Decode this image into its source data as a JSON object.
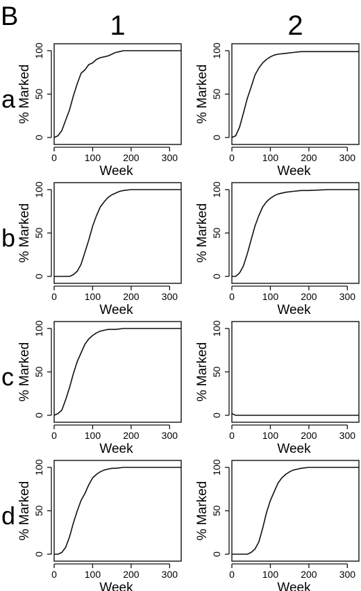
{
  "figure": {
    "panel_letter": "B",
    "column_labels": [
      "1",
      "2"
    ],
    "row_labels": [
      "a",
      "b",
      "c",
      "d"
    ]
  },
  "axes": {
    "xlabel": "Week",
    "ylabel": "% Marked",
    "xlim": [
      0,
      330
    ],
    "ylim": [
      0,
      100
    ],
    "xticks": [
      "0",
      "100",
      "200",
      "300"
    ],
    "yticks": [
      "0",
      "50",
      "100"
    ]
  },
  "chart_data": [
    {
      "type": "line",
      "row": "a",
      "col": "1",
      "x": [
        0,
        10,
        20,
        30,
        40,
        50,
        60,
        70,
        80,
        90,
        100,
        110,
        120,
        130,
        140,
        150,
        160,
        170,
        180,
        200,
        250,
        330
      ],
      "y": [
        0,
        2,
        8,
        20,
        32,
        48,
        62,
        74,
        78,
        84,
        86,
        90,
        92,
        93,
        94,
        96,
        98,
        99,
        100,
        100,
        100,
        100
      ],
      "xlabel": "Week",
      "ylabel": "% Marked",
      "xlim": [
        0,
        330
      ],
      "ylim": [
        0,
        100
      ]
    },
    {
      "type": "line",
      "row": "a",
      "col": "2",
      "x": [
        0,
        10,
        20,
        30,
        40,
        50,
        60,
        70,
        80,
        90,
        100,
        110,
        120,
        140,
        160,
        180,
        200,
        250,
        330
      ],
      "y": [
        0,
        2,
        12,
        28,
        45,
        58,
        72,
        80,
        86,
        90,
        93,
        95,
        96,
        97,
        98,
        99,
        99,
        99,
        99
      ],
      "xlabel": "Week",
      "ylabel": "% Marked",
      "xlim": [
        0,
        330
      ],
      "ylim": [
        0,
        100
      ]
    },
    {
      "type": "line",
      "row": "b",
      "col": "1",
      "x": [
        0,
        20,
        40,
        50,
        60,
        70,
        80,
        90,
        100,
        110,
        120,
        130,
        140,
        150,
        160,
        170,
        180,
        200,
        250,
        330
      ],
      "y": [
        0,
        0,
        0,
        2,
        6,
        14,
        28,
        42,
        58,
        70,
        80,
        86,
        91,
        94,
        96,
        98,
        99,
        100,
        100,
        100
      ],
      "xlabel": "Week",
      "ylabel": "% Marked",
      "xlim": [
        0,
        330
      ],
      "ylim": [
        0,
        100
      ]
    },
    {
      "type": "line",
      "row": "b",
      "col": "2",
      "x": [
        0,
        10,
        20,
        30,
        40,
        50,
        60,
        70,
        80,
        90,
        100,
        110,
        120,
        140,
        160,
        180,
        200,
        250,
        330
      ],
      "y": [
        0,
        0,
        4,
        12,
        26,
        42,
        58,
        70,
        80,
        86,
        90,
        93,
        95,
        97,
        98,
        99,
        99,
        100,
        100
      ],
      "xlabel": "Week",
      "ylabel": "% Marked",
      "xlim": [
        0,
        330
      ],
      "ylim": [
        0,
        100
      ]
    },
    {
      "type": "line",
      "row": "c",
      "col": "1",
      "x": [
        0,
        10,
        20,
        30,
        40,
        50,
        60,
        70,
        80,
        90,
        100,
        110,
        120,
        130,
        140,
        160,
        180,
        200,
        250,
        330
      ],
      "y": [
        0,
        2,
        6,
        18,
        32,
        48,
        62,
        72,
        82,
        88,
        92,
        95,
        97,
        98,
        99,
        99,
        100,
        100,
        100,
        100
      ],
      "xlabel": "Week",
      "ylabel": "% Marked",
      "xlim": [
        0,
        330
      ],
      "ylim": [
        0,
        100
      ]
    },
    {
      "type": "line",
      "row": "c",
      "col": "2",
      "x": [
        0,
        5,
        10,
        20,
        330
      ],
      "y": [
        2,
        1,
        0,
        0,
        0
      ],
      "xlabel": "Week",
      "ylabel": "% Marked",
      "xlim": [
        0,
        330
      ],
      "ylim": [
        0,
        100
      ]
    },
    {
      "type": "line",
      "row": "d",
      "col": "1",
      "x": [
        0,
        10,
        20,
        30,
        40,
        50,
        60,
        70,
        80,
        90,
        100,
        110,
        120,
        130,
        140,
        150,
        160,
        180,
        200,
        250,
        330
      ],
      "y": [
        0,
        0,
        2,
        8,
        20,
        36,
        50,
        62,
        70,
        80,
        88,
        92,
        95,
        97,
        98,
        99,
        99,
        100,
        100,
        100,
        100
      ],
      "xlabel": "Week",
      "ylabel": "% Marked",
      "xlim": [
        0,
        330
      ],
      "ylim": [
        0,
        100
      ]
    },
    {
      "type": "line",
      "row": "d",
      "col": "2",
      "x": [
        0,
        20,
        40,
        50,
        60,
        70,
        80,
        90,
        100,
        110,
        120,
        130,
        140,
        150,
        160,
        170,
        180,
        200,
        250,
        330
      ],
      "y": [
        0,
        0,
        0,
        2,
        6,
        14,
        30,
        48,
        62,
        72,
        82,
        88,
        92,
        95,
        97,
        98,
        99,
        100,
        100,
        100
      ],
      "xlabel": "Week",
      "ylabel": "% Marked",
      "xlim": [
        0,
        330
      ],
      "ylim": [
        0,
        100
      ]
    }
  ]
}
